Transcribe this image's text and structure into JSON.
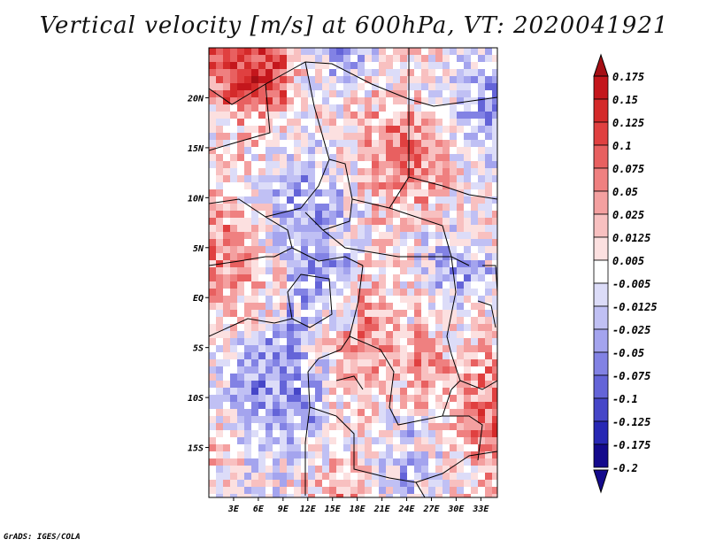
{
  "title": "Vertical velocity [m/s] at 600hPa, VT: 2020041921",
  "credit": "GrADS: IGES/COLA",
  "map": {
    "lon_range": [
      0,
      35
    ],
    "lat_range": [
      -20,
      25
    ],
    "lon_ticks": [
      "3E",
      "6E",
      "9E",
      "12E",
      "15E",
      "18E",
      "21E",
      "24E",
      "27E",
      "30E",
      "33E"
    ],
    "lon_tick_values": [
      3,
      6,
      9,
      12,
      15,
      18,
      21,
      24,
      27,
      30,
      33
    ],
    "lat_ticks": [
      "20N",
      "15N",
      "10N",
      "5N",
      "EQ",
      "5S",
      "10S",
      "15S"
    ],
    "lat_tick_values": [
      20,
      15,
      10,
      5,
      0,
      -5,
      -10,
      -15
    ]
  },
  "colorbar": {
    "levels": [
      "0.175",
      "0.15",
      "0.125",
      "0.1",
      "0.075",
      "0.05",
      "0.025",
      "0.0125",
      "0.005",
      "-0.005",
      "-0.0125",
      "-0.025",
      "-0.05",
      "-0.075",
      "-0.1",
      "-0.125",
      "-0.175",
      "-0.2"
    ],
    "colors": [
      "#a50f15",
      "#c4161c",
      "#d42a2a",
      "#e04040",
      "#e86060",
      "#ef8080",
      "#f4a0a0",
      "#f8c0c0",
      "#fce0e0",
      "#ffffff",
      "#dcdcf8",
      "#c0c0f4",
      "#a4a4ee",
      "#8282e4",
      "#6464d8",
      "#4646c8",
      "#2828b4",
      "#140a8c"
    ]
  }
}
